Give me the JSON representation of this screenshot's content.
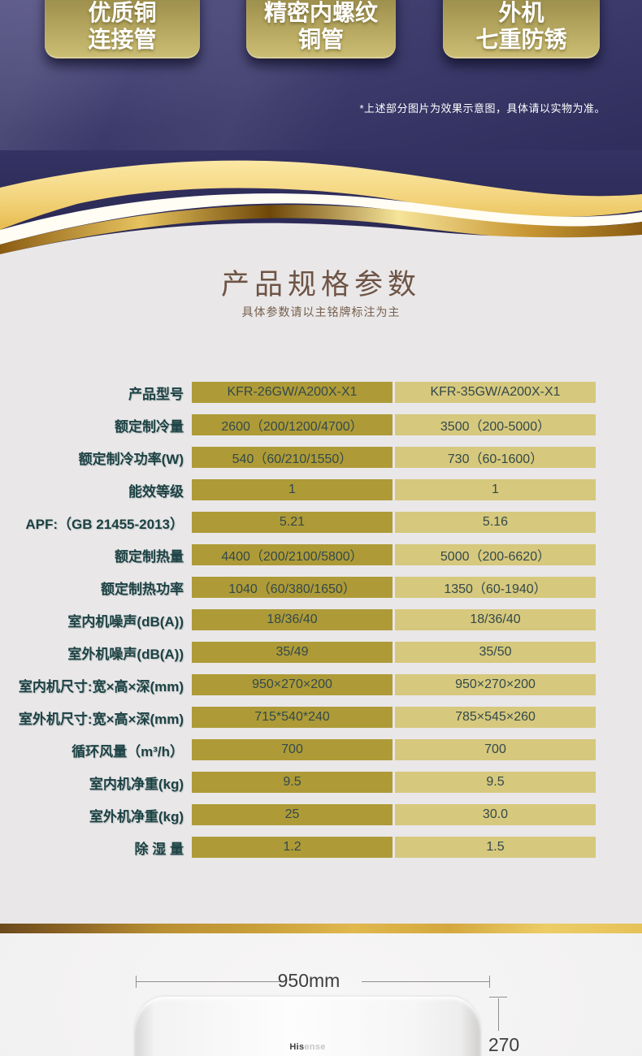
{
  "hero": {
    "badges": [
      {
        "line1": "优质铜",
        "line2": "连接管"
      },
      {
        "line1": "精密内螺纹",
        "line2": "铜管"
      },
      {
        "line1": "外机",
        "line2": "七重防锈"
      }
    ],
    "disclaimer": "*上述部分图片为效果示意图，具体请以实物为准。"
  },
  "specs": {
    "title": "产品规格参数",
    "subtitle": "具体参数请以主铭牌标注为主",
    "model_columns": [
      "KFR-26GW/A200X-X1",
      "KFR-35GW/A200X-X1"
    ],
    "rows": [
      {
        "label": "产品型号",
        "v1": "KFR-26GW/A200X-X1",
        "v2": "KFR-35GW/A200X-X1"
      },
      {
        "label": "额定制冷量",
        "v1": "2600（200/1200/4700）",
        "v2": "3500（200-5000）"
      },
      {
        "label": "额定制冷功率(W)",
        "v1": "540（60/210/1550）",
        "v2": "730（60-1600）"
      },
      {
        "label": "能效等级",
        "v1": "1",
        "v2": "1"
      },
      {
        "label": "APF:（GB 21455-2013）",
        "v1": "5.21",
        "v2": "5.16"
      },
      {
        "label": "额定制热量",
        "v1": "4400（200/2100/5800）",
        "v2": "5000（200-6620）"
      },
      {
        "label": "额定制热功率",
        "v1": "1040（60/380/1650）",
        "v2": "1350（60-1940）"
      },
      {
        "label": "室内机噪声(dB(A))",
        "v1": "18/36/40",
        "v2": "18/36/40"
      },
      {
        "label": "室外机噪声(dB(A))",
        "v1": "35/49",
        "v2": "35/50"
      },
      {
        "label": "室内机尺寸:宽×高×深(mm)",
        "v1": "950×270×200",
        "v2": "950×270×200"
      },
      {
        "label": "室外机尺寸:宽×高×深(mm)",
        "v1": "715*540*240",
        "v2": "785×545×260"
      },
      {
        "label": "循环风量（m³/h）",
        "v1": "700",
        "v2": "700"
      },
      {
        "label": "室内机净重(kg)",
        "v1": "9.5",
        "v2": "9.5"
      },
      {
        "label": "室外机净重(kg)",
        "v1": "25",
        "v2": "30.0"
      },
      {
        "label": "除 湿 量",
        "v1": "1.2",
        "v2": "1.5"
      }
    ]
  },
  "product": {
    "width_label": "950mm",
    "height_label": "270",
    "brand_dark": "His",
    "brand_faint": "ense"
  },
  "colors": {
    "hero_navy": "#3c3a6a",
    "badge_gold": "#b5a65e",
    "cell_gold_dark": "#ae9b37",
    "cell_gold_light": "#d6c87d",
    "label_teal": "#1c4244",
    "title_brown": "#6e5445",
    "page_gray": "#e9e7e8",
    "stripe_gold": "#d4a83f"
  }
}
